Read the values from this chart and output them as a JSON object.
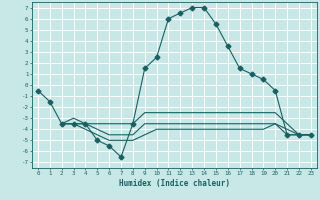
{
  "title": "",
  "xlabel": "Humidex (Indice chaleur)",
  "bg_color": "#c8e8e8",
  "grid_color": "#ffffff",
  "line_color": "#1a6060",
  "xlim": [
    -0.5,
    23.5
  ],
  "ylim": [
    -7.5,
    7.5
  ],
  "xticks": [
    0,
    1,
    2,
    3,
    4,
    5,
    6,
    7,
    8,
    9,
    10,
    11,
    12,
    13,
    14,
    15,
    16,
    17,
    18,
    19,
    20,
    21,
    22,
    23
  ],
  "yticks": [
    7,
    6,
    5,
    4,
    3,
    2,
    1,
    0,
    -1,
    -2,
    -3,
    -4,
    -5,
    -6,
    -7
  ],
  "series": [
    {
      "x": [
        0,
        1,
        2,
        3,
        4,
        5,
        6,
        7,
        8,
        9,
        10,
        11,
        12,
        13,
        14,
        15,
        16,
        17,
        18,
        19,
        20,
        21,
        22,
        23
      ],
      "y": [
        -0.5,
        -1.5,
        -3.5,
        -3.5,
        -3.5,
        -5.0,
        -5.5,
        -6.5,
        -3.5,
        1.5,
        2.5,
        6.0,
        6.5,
        7.0,
        7.0,
        5.5,
        3.5,
        1.5,
        1.0,
        0.5,
        -0.5,
        -4.5,
        -4.5,
        -4.5
      ],
      "marker": "D",
      "markersize": 2.5
    },
    {
      "x": [
        2,
        3,
        4,
        5,
        6,
        7,
        8,
        9,
        10,
        11,
        12,
        13,
        14,
        15,
        16,
        17,
        18,
        19,
        20,
        21,
        22,
        23
      ],
      "y": [
        -3.5,
        -3.0,
        -3.5,
        -3.5,
        -3.5,
        -3.5,
        -3.5,
        -2.5,
        -2.5,
        -2.5,
        -2.5,
        -2.5,
        -2.5,
        -2.5,
        -2.5,
        -2.5,
        -2.5,
        -2.5,
        -2.5,
        -3.5,
        -4.5,
        -4.5
      ],
      "marker": null,
      "markersize": 0
    },
    {
      "x": [
        2,
        3,
        4,
        5,
        6,
        7,
        8,
        9,
        10,
        11,
        12,
        13,
        14,
        15,
        16,
        17,
        18,
        19,
        20,
        21,
        22,
        23
      ],
      "y": [
        -3.5,
        -3.5,
        -3.5,
        -4.0,
        -4.5,
        -4.5,
        -4.5,
        -3.5,
        -3.5,
        -3.5,
        -3.5,
        -3.5,
        -3.5,
        -3.5,
        -3.5,
        -3.5,
        -3.5,
        -3.5,
        -3.5,
        -4.0,
        -4.5,
        -4.5
      ],
      "marker": null,
      "markersize": 0
    },
    {
      "x": [
        2,
        3,
        4,
        5,
        6,
        7,
        8,
        9,
        10,
        11,
        12,
        13,
        14,
        15,
        16,
        17,
        18,
        19,
        20,
        21,
        22,
        23
      ],
      "y": [
        -3.5,
        -3.5,
        -4.0,
        -4.5,
        -5.0,
        -5.0,
        -5.0,
        -4.5,
        -4.0,
        -4.0,
        -4.0,
        -4.0,
        -4.0,
        -4.0,
        -4.0,
        -4.0,
        -4.0,
        -4.0,
        -3.5,
        -4.5,
        -4.5,
        -4.5
      ],
      "marker": null,
      "markersize": 0
    }
  ]
}
